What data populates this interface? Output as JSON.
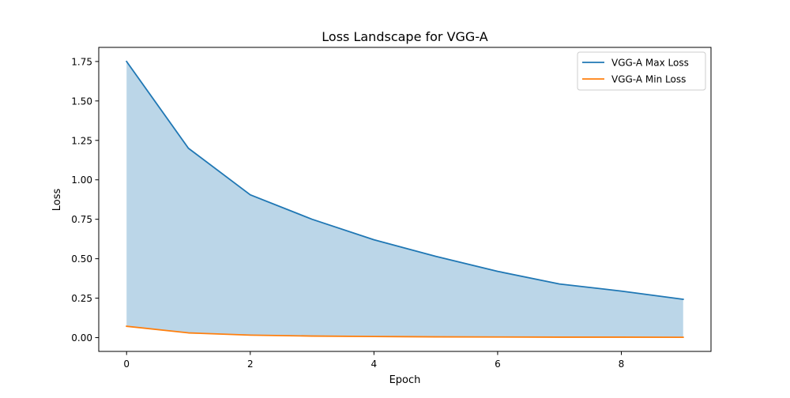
{
  "chart_data": {
    "type": "line",
    "title": "Loss Landscape for VGG-A",
    "xlabel": "Epoch",
    "ylabel": "Loss",
    "x": [
      0,
      1,
      2,
      3,
      4,
      5,
      6,
      7,
      8,
      9
    ],
    "series": [
      {
        "name": "VGG-A Max Loss",
        "color": "#1f77b4",
        "values": [
          1.75,
          1.2,
          0.905,
          0.75,
          0.62,
          0.515,
          0.42,
          0.34,
          0.295,
          0.243
        ]
      },
      {
        "name": "VGG-A Min Loss",
        "color": "#ff7f0e",
        "values": [
          0.072,
          0.03,
          0.016,
          0.01,
          0.007,
          0.005,
          0.004,
          0.003,
          0.003,
          0.002
        ]
      }
    ],
    "fill_between": {
      "upper": "VGG-A Max Loss",
      "lower": "VGG-A Min Loss",
      "color": "#1f77b4",
      "opacity": 0.3
    },
    "xlim": [
      -0.45,
      9.45
    ],
    "ylim": [
      -0.0874,
      1.8394
    ],
    "xticks": [
      0,
      2,
      4,
      6,
      8
    ],
    "xtick_labels": [
      "0",
      "2",
      "4",
      "6",
      "8"
    ],
    "yticks": [
      0,
      0.25,
      0.5,
      0.75,
      1.0,
      1.25,
      1.5,
      1.75
    ],
    "ytick_labels": [
      "0.00",
      "0.25",
      "0.50",
      "0.75",
      "1.00",
      "1.25",
      "1.50",
      "1.75"
    ],
    "grid": false,
    "legend": {
      "placement": "top-right",
      "entries": [
        "VGG-A Max Loss",
        "VGG-A Min Loss"
      ]
    }
  }
}
